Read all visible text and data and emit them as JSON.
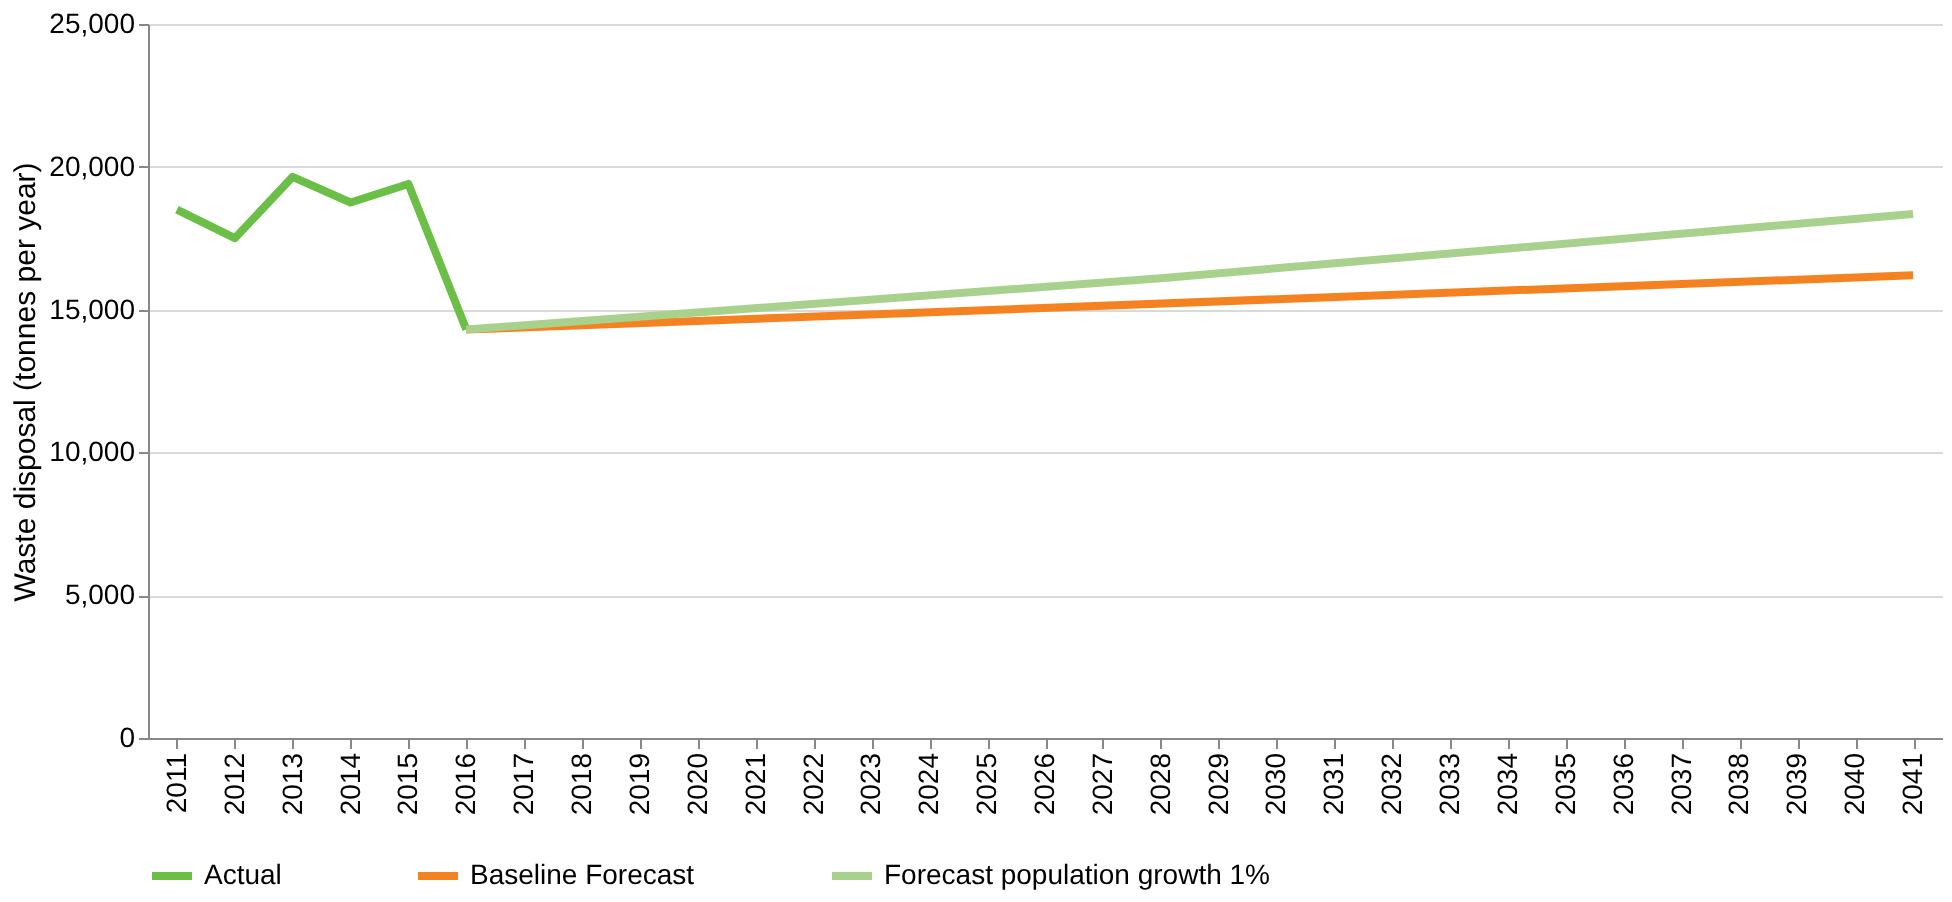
{
  "chart_data": {
    "type": "line",
    "ylabel": "Waste disposal (tonnes per year)",
    "xlim": [
      2010.5,
      2041.5
    ],
    "xticks": [
      2011,
      2012,
      2013,
      2014,
      2015,
      2016,
      2017,
      2018,
      2019,
      2020,
      2021,
      2022,
      2023,
      2024,
      2025,
      2026,
      2027,
      2028,
      2029,
      2030,
      2031,
      2032,
      2033,
      2034,
      2035,
      2036,
      2037,
      2038,
      2039,
      2040,
      2041
    ],
    "series": [
      {
        "name": "Actual",
        "color": "#6cbf46",
        "x": [
          2011,
          2012,
          2013,
          2014,
          2015,
          2016
        ],
        "values": [
          18500,
          17500,
          19650,
          18750,
          19400,
          14300
        ]
      },
      {
        "name": "Baseline Forecast",
        "color": "#f58220",
        "x": [
          2016,
          2041
        ],
        "values": [
          14300,
          16200
        ]
      },
      {
        "name": "Forecast population growth 1%",
        "color": "#a9d18e",
        "x": [
          2016,
          2028,
          2041
        ],
        "values": [
          14300,
          16100,
          18350
        ]
      }
    ],
    "ylim": [
      0,
      25000
    ],
    "yticks": [
      {
        "value": 0,
        "label": "0"
      },
      {
        "value": 5000,
        "label": "5,000"
      },
      {
        "value": 10000,
        "label": "10,000"
      },
      {
        "value": 15000,
        "label": "15,000"
      },
      {
        "value": 20000,
        "label": "20,000"
      },
      {
        "value": 25000,
        "label": "25,000"
      }
    ],
    "grid": "y",
    "legend": "bottom",
    "line_style": "solid",
    "marker": "none"
  }
}
